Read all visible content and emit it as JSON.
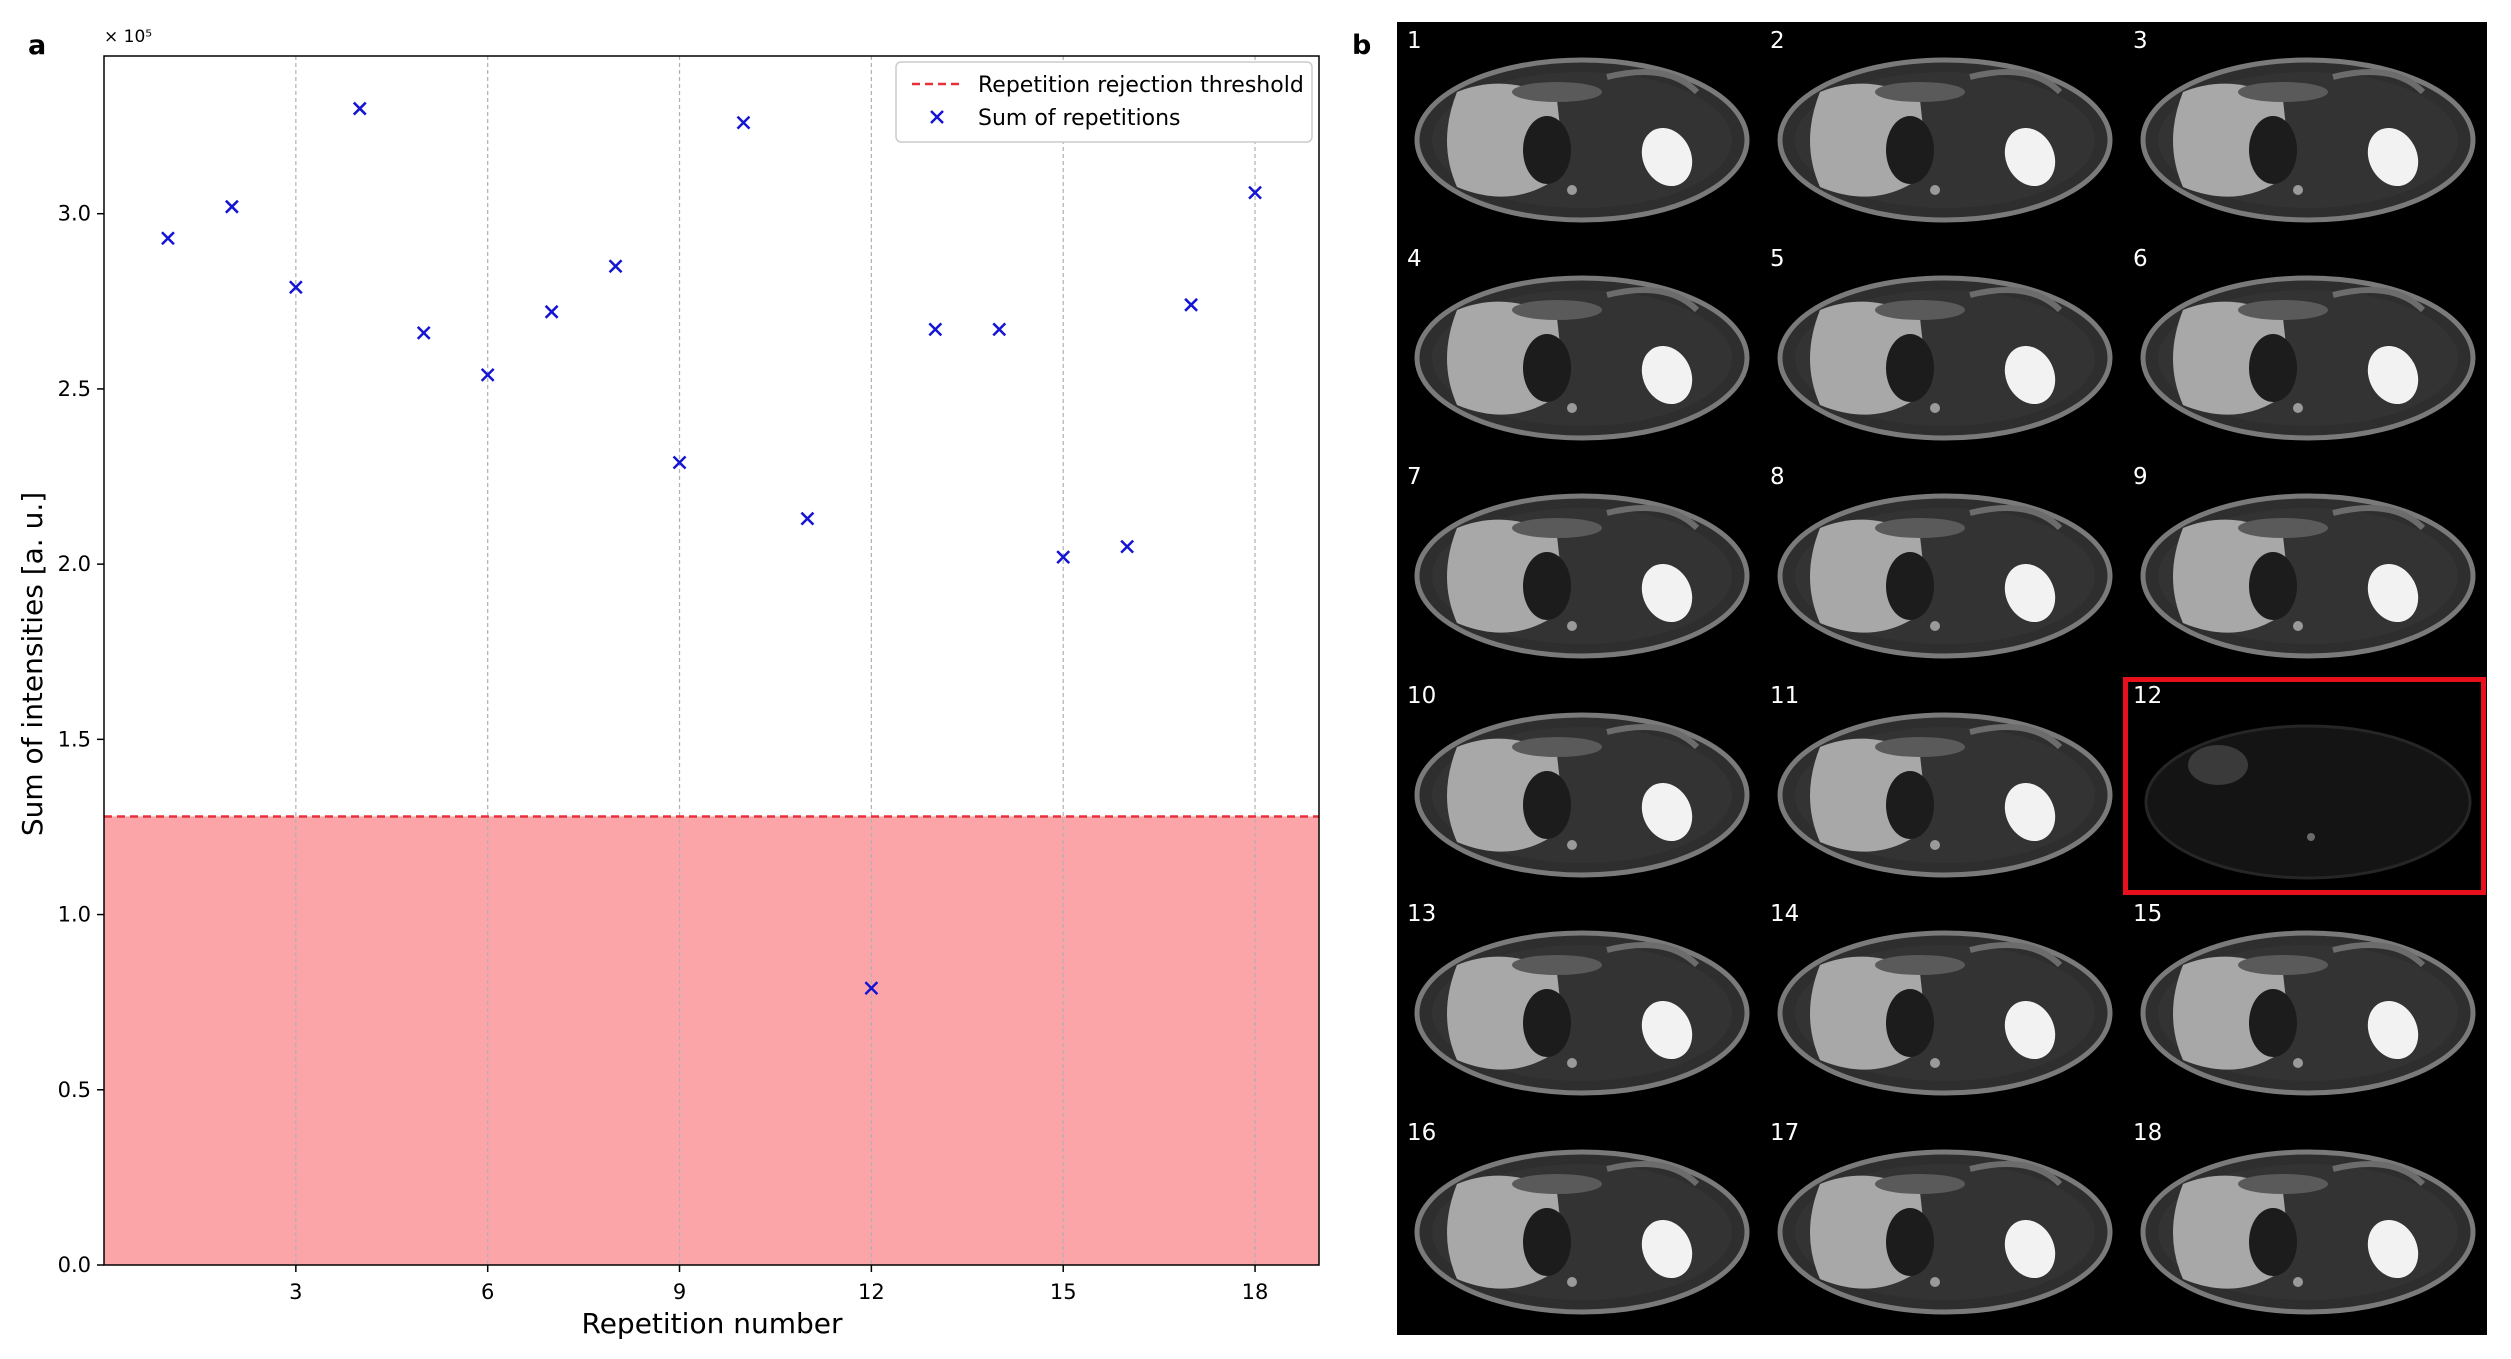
{
  "panels": {
    "a_label": "a",
    "b_label": "b"
  },
  "chart_data": {
    "type": "scatter",
    "xlabel": "Repetition number",
    "ylabel": "Sum of intensities [a. u.]",
    "y_multiplier_label": "× 10⁵",
    "xlim": [
      0,
      19
    ],
    "ylim": [
      0,
      3.45
    ],
    "xticks": [
      3,
      6,
      9,
      12,
      15,
      18
    ],
    "yticks": [
      0.0,
      0.5,
      1.0,
      1.5,
      2.0,
      2.5,
      3.0
    ],
    "x_grid": true,
    "threshold": {
      "label": "Repetition rejection threshold",
      "value": 1.28,
      "color": "#e8303a",
      "fill": "#fca5a8"
    },
    "series": [
      {
        "name": "Sum of repetitions",
        "color": "#1414d4",
        "marker": "x",
        "x": [
          1,
          2,
          3,
          4,
          5,
          6,
          7,
          8,
          9,
          10,
          11,
          12,
          13,
          14,
          15,
          16,
          17,
          18
        ],
        "y": [
          2.93,
          3.02,
          2.79,
          3.3,
          2.66,
          2.54,
          2.72,
          2.85,
          2.29,
          3.26,
          2.13,
          0.79,
          2.67,
          2.67,
          2.02,
          2.05,
          2.74,
          3.06
        ]
      }
    ],
    "legend": {
      "position": "top-right",
      "entries": [
        "Repetition rejection threshold",
        "Sum of repetitions"
      ]
    }
  },
  "images": {
    "tiles": [
      "1",
      "2",
      "3",
      "4",
      "5",
      "6",
      "7",
      "8",
      "9",
      "10",
      "11",
      "12",
      "13",
      "14",
      "15",
      "16",
      "17",
      "18"
    ],
    "rejected": "12"
  }
}
